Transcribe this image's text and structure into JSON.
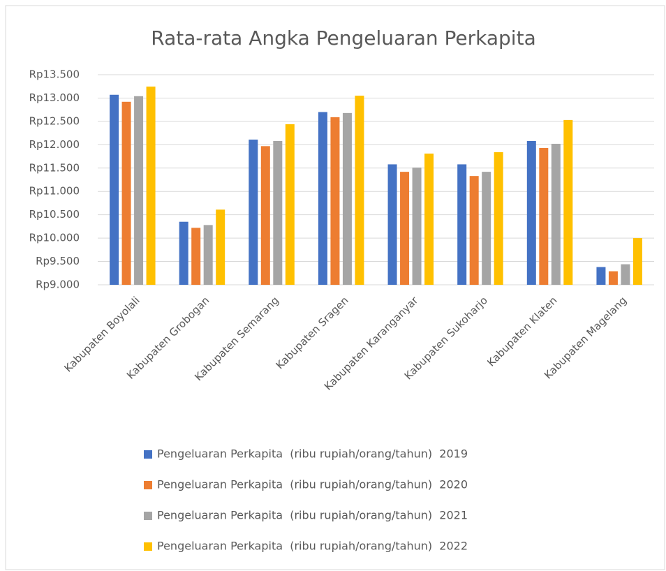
{
  "chart_data": {
    "type": "bar",
    "title": "Rata-rata Angka Pengeluaran Perkapita",
    "categories": [
      "Kabupaten Boyolali",
      "Kabupaten Grobogan",
      "Kabupaten Semarang",
      "Kabupaten Sragen",
      "Kabupaten Karanganyar",
      "Kabupaten Sukoharjo",
      "Kabupaten Klaten",
      "Kabupaten Magelang"
    ],
    "series": [
      {
        "name": "Pengeluaran Perkapita  (ribu rupiah/orang/tahun)  2019",
        "color": "#4472c4",
        "values": [
          13070,
          10350,
          12110,
          12700,
          11580,
          11580,
          12080,
          9380
        ]
      },
      {
        "name": "Pengeluaran Perkapita  (ribu rupiah/orang/tahun)  2020",
        "color": "#ed7d31",
        "values": [
          12920,
          10220,
          11970,
          12590,
          11420,
          11330,
          11930,
          9290
        ]
      },
      {
        "name": "Pengeluaran Perkapita  (ribu rupiah/orang/tahun)  2021",
        "color": "#a5a5a5",
        "values": [
          13040,
          10280,
          12080,
          12680,
          11510,
          11420,
          12020,
          9440
        ]
      },
      {
        "name": "Pengeluaran Perkapita  (ribu rupiah/orang/tahun)  2022",
        "color": "#ffc000",
        "values": [
          13245,
          10610,
          12440,
          13050,
          11810,
          11840,
          12530,
          10000
        ]
      }
    ],
    "ylim": [
      9000,
      13500
    ],
    "yticks": [
      {
        "value": 9000,
        "label": "Rp9.000"
      },
      {
        "value": 9500,
        "label": "Rp9.500"
      },
      {
        "value": 10000,
        "label": "Rp10.000"
      },
      {
        "value": 10500,
        "label": "Rp10.500"
      },
      {
        "value": 11000,
        "label": "Rp11.000"
      },
      {
        "value": 11500,
        "label": "Rp11.500"
      },
      {
        "value": 12000,
        "label": "Rp12.000"
      },
      {
        "value": 12500,
        "label": "Rp12.500"
      },
      {
        "value": 13000,
        "label": "Rp13.000"
      },
      {
        "value": 13500,
        "label": "Rp13.500"
      }
    ],
    "grid": true,
    "legend": "bottom"
  }
}
